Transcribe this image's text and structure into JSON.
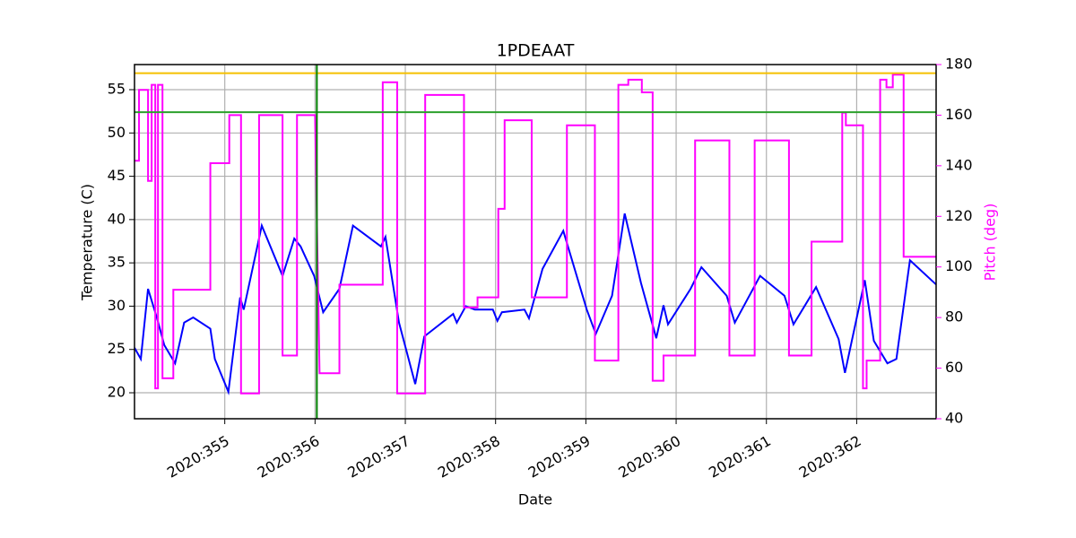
{
  "chart_data": {
    "type": "line",
    "title": "1PDEAAT",
    "x_label": "Date",
    "y_label": "Temperature (C)",
    "y2_label": "Pitch (deg)",
    "xlim": [
      354.0,
      362.88
    ],
    "xticks": [
      {
        "value": 355,
        "label": "2020:355"
      },
      {
        "value": 356,
        "label": "2020:356"
      },
      {
        "value": 357,
        "label": "2020:357"
      },
      {
        "value": 358,
        "label": "2020:358"
      },
      {
        "value": 359,
        "label": "2020:359"
      },
      {
        "value": 360,
        "label": "2020:360"
      },
      {
        "value": 361,
        "label": "2020:361"
      },
      {
        "value": 362,
        "label": "2020:362"
      }
    ],
    "ylim": [
      17,
      57.9
    ],
    "yticks": [
      20,
      25,
      30,
      35,
      40,
      45,
      50,
      55
    ],
    "y2lim": [
      40,
      180
    ],
    "y2ticks": [
      40,
      60,
      80,
      100,
      120,
      140,
      160,
      180
    ],
    "y2_color": "#ff00ff",
    "grid": true,
    "hlines": [
      {
        "value": 56.9,
        "color": "#f5c000"
      },
      {
        "value": 52.4,
        "color": "#2ca02c"
      }
    ],
    "vlines": [
      {
        "value": 356.02,
        "color": "#008000"
      }
    ],
    "series": [
      {
        "color": "#0000ff",
        "x": [
          354.0,
          354.07,
          354.15,
          354.25,
          354.33,
          354.45,
          354.55,
          354.65,
          354.84,
          354.89,
          355.04,
          355.17,
          355.21,
          355.41,
          355.64,
          355.77,
          355.84,
          355.99,
          356.09,
          356.27,
          356.42,
          356.73,
          356.78,
          356.93,
          357.11,
          357.21,
          357.53,
          357.57,
          357.67,
          357.77,
          357.97,
          358.02,
          358.07,
          358.32,
          358.37,
          358.52,
          358.75,
          359.01,
          359.11,
          359.29,
          359.43,
          359.61,
          359.78,
          359.86,
          359.91,
          360.16,
          360.28,
          360.56,
          360.65,
          360.93,
          361.2,
          361.3,
          361.55,
          361.8,
          361.87,
          362.09,
          362.19,
          362.34,
          362.44,
          362.59,
          362.88
        ],
        "values": [
          25.2,
          23.9,
          32.0,
          28.6,
          25.5,
          23.4,
          28.1,
          28.7,
          27.4,
          23.9,
          20.1,
          31.0,
          29.6,
          39.3,
          33.5,
          37.8,
          36.9,
          33.5,
          29.3,
          32.0,
          39.3,
          36.9,
          38.0,
          28.1,
          21.0,
          26.5,
          29.1,
          28.1,
          30.0,
          29.6,
          29.6,
          28.3,
          29.3,
          29.6,
          28.6,
          34.3,
          38.7,
          29.6,
          26.8,
          31.2,
          40.7,
          32.7,
          26.3,
          30.1,
          27.9,
          32.0,
          34.5,
          31.2,
          28.1,
          33.5,
          31.2,
          27.9,
          32.2,
          26.2,
          22.3,
          33.0,
          26.0,
          23.4,
          23.9,
          35.3,
          32.5
        ]
      },
      {
        "color": "#ff00ff",
        "axis": "y2",
        "x": [
          354.0,
          354.05,
          354.05,
          354.15,
          354.15,
          354.19,
          354.19,
          354.23,
          354.23,
          354.26,
          354.26,
          354.31,
          354.31,
          354.43,
          354.43,
          354.84,
          354.84,
          355.05,
          355.05,
          355.18,
          355.18,
          355.38,
          355.38,
          355.64,
          355.64,
          355.8,
          355.8,
          356.0,
          356.05,
          356.27,
          356.27,
          356.75,
          356.75,
          356.91,
          356.91,
          357.22,
          357.22,
          357.65,
          357.65,
          357.8,
          357.8,
          358.03,
          358.03,
          358.1,
          358.1,
          358.4,
          358.4,
          358.79,
          358.79,
          359.1,
          359.1,
          359.36,
          359.36,
          359.47,
          359.47,
          359.62,
          359.62,
          359.74,
          359.74,
          359.86,
          359.86,
          360.21,
          360.21,
          360.59,
          360.59,
          360.87,
          360.87,
          361.25,
          361.25,
          361.5,
          361.5,
          361.84,
          361.84,
          361.88,
          361.88,
          362.07,
          362.07,
          362.11,
          362.11,
          362.26,
          362.26,
          362.33,
          362.33,
          362.4,
          362.4,
          362.52,
          362.52,
          362.88
        ],
        "values": [
          142,
          142,
          170,
          170,
          134,
          134,
          172,
          172,
          52,
          52,
          172,
          172,
          56,
          56,
          91,
          91,
          141,
          141,
          160,
          160,
          50,
          50,
          160,
          160,
          65,
          65,
          160,
          160,
          58,
          58,
          93,
          93,
          173,
          173,
          50,
          50,
          168,
          168,
          84,
          84,
          88,
          88,
          123,
          123,
          158,
          158,
          88,
          88,
          156,
          156,
          63,
          63,
          172,
          172,
          174,
          174,
          169,
          169,
          55,
          55,
          65,
          65,
          150,
          150,
          65,
          65,
          150,
          150,
          65,
          65,
          110,
          110,
          161,
          161,
          156,
          156,
          52,
          52,
          63,
          63,
          174,
          174,
          171,
          171,
          176,
          176,
          104,
          104
        ]
      }
    ]
  }
}
